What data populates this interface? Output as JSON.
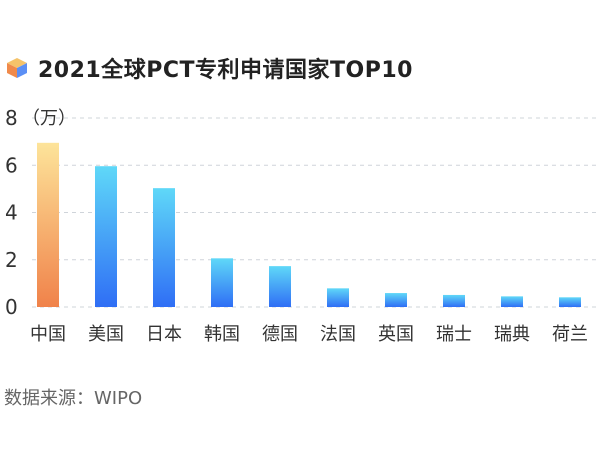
{
  "title": "2021全球PCT专利申请国家TOP10",
  "source": "数据来源：WIPO",
  "colors": {
    "highlight_top": "#fde49a",
    "highlight_bottom": "#f0824a",
    "bar_top": "#5fd8f8",
    "bar_bottom": "#2f6ef5",
    "grid": "#cfd4da",
    "axis_text": "#333333",
    "icon_left": "#f08a4b",
    "icon_right": "#5b8ff5",
    "icon_top": "#f5c36a"
  },
  "chart_data": {
    "type": "bar",
    "title": "2021全球PCT专利申请国家TOP10",
    "unit_label": "（万）",
    "categories": [
      "中国",
      "美国",
      "日本",
      "韩国",
      "德国",
      "法国",
      "英国",
      "瑞士",
      "瑞典",
      "荷兰"
    ],
    "values": [
      6.95,
      5.96,
      5.03,
      2.06,
      1.73,
      0.79,
      0.59,
      0.51,
      0.45,
      0.41
    ],
    "highlight_index": 0,
    "ylim": [
      0,
      8
    ],
    "yticks": [
      0,
      2,
      4,
      6,
      8
    ],
    "grid": true,
    "grid_style": "dashed",
    "legend": "none"
  }
}
